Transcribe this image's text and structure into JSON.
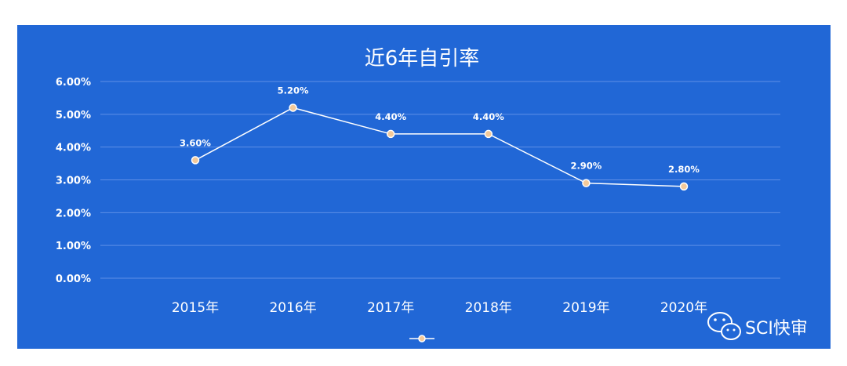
{
  "chart_data": {
    "type": "line",
    "title": "近6年自引率",
    "categories": [
      "2015年",
      "2016年",
      "2017年",
      "2018年",
      "2019年",
      "2020年"
    ],
    "values": [
      3.6,
      5.2,
      4.4,
      4.4,
      2.9,
      2.8
    ],
    "data_labels": [
      "3.60%",
      "5.20%",
      "4.40%",
      "4.40%",
      "2.90%",
      "2.80%"
    ],
    "yticks": [
      "0.00%",
      "1.00%",
      "2.00%",
      "3.00%",
      "4.00%",
      "5.00%",
      "6.00%"
    ],
    "ylim": [
      0,
      6
    ],
    "grid": true,
    "legend": "bottom-center",
    "colors": {
      "background": "#2167d6",
      "line": "#ffffff",
      "marker_fill": "#f3c99a",
      "marker_stroke": "#ffffff"
    }
  },
  "watermark": {
    "text": "SCI快审",
    "icon": "wechat-icon"
  }
}
